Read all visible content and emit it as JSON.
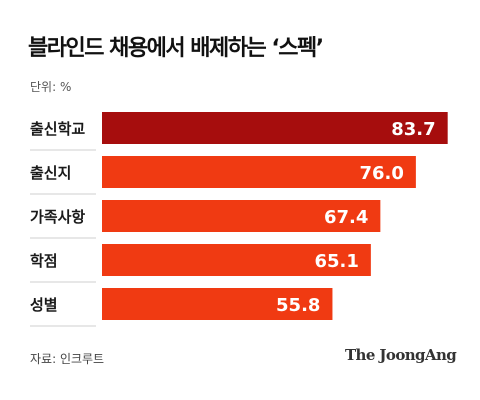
{
  "chart_data": {
    "type": "bar",
    "orientation": "horizontal",
    "title": "블라인드 채용에서 배제하는 ‘스펙’",
    "unit_label": "단위: %",
    "categories": [
      "출신학교",
      "출신지",
      "가족사항",
      "학점",
      "성별"
    ],
    "values": [
      83.7,
      76.0,
      67.4,
      65.1,
      55.8
    ],
    "value_labels": [
      "83.7",
      "76.0",
      "67.4",
      "65.1",
      "55.8"
    ],
    "xlim": [
      0,
      100
    ],
    "grid": false,
    "highlight_index": 0,
    "colors": {
      "highlight": "#a60d0d",
      "bar": "#f03a12",
      "separator": "#cfcfcf"
    }
  },
  "footer": {
    "source": "자료: 인크루트",
    "logo": "The JoongAng"
  }
}
